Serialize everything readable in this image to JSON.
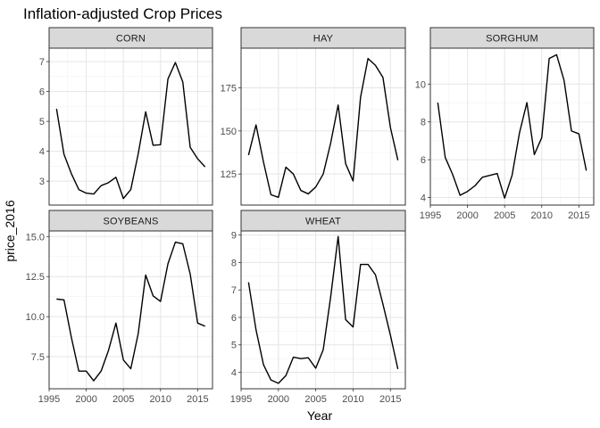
{
  "chart_data": {
    "type": "line",
    "title": "Inflation-adjusted Crop Prices",
    "xlabel": "Year",
    "ylabel": "price_2016",
    "colors": {
      "line": "#000000",
      "panel_background": "#ffffff",
      "strip_fill": "#d9d9d9",
      "strip_border": "#333333",
      "grid_major": "#e5e5e5",
      "grid_minor": "#f2f2f2"
    },
    "layout": "facet-wrap",
    "x": [
      1996,
      1997,
      1998,
      1999,
      2000,
      2001,
      2002,
      2003,
      2004,
      2005,
      2006,
      2007,
      2008,
      2009,
      2010,
      2011,
      2012,
      2013,
      2014,
      2015,
      2016
    ],
    "xlim": [
      1995,
      2017
    ],
    "panels": [
      {
        "name": "CORN",
        "ylim": [
          2.2,
          7.45
        ],
        "yticks": [
          3,
          4,
          5,
          6,
          7
        ],
        "ytick_labels": [
          "3",
          "4",
          "5",
          "6",
          "7"
        ],
        "values": [
          5.42,
          3.9,
          3.25,
          2.72,
          2.6,
          2.57,
          2.85,
          2.95,
          3.13,
          2.42,
          2.72,
          3.92,
          5.32,
          4.2,
          4.22,
          6.42,
          6.97,
          6.32,
          4.13,
          3.75,
          3.48
        ]
      },
      {
        "name": "HAY",
        "ylim": [
          107,
          198
        ],
        "yticks": [
          125,
          150,
          175
        ],
        "ytick_labels": [
          "125",
          "150",
          "175"
        ],
        "values": [
          136,
          153.5,
          132,
          113,
          111.5,
          129,
          125,
          115.5,
          113.5,
          117.5,
          125,
          143,
          165,
          131,
          121,
          169.5,
          192,
          188,
          181,
          152,
          133
        ]
      },
      {
        "name": "SORGHUM",
        "ylim": [
          3.6,
          11.9
        ],
        "yticks": [
          4,
          6,
          8,
          10
        ],
        "ytick_labels": [
          "4",
          "6",
          "8",
          "10"
        ],
        "values": [
          9.02,
          6.12,
          5.22,
          4.12,
          4.32,
          4.62,
          5.07,
          5.17,
          5.27,
          3.97,
          5.17,
          7.42,
          9.02,
          6.27,
          7.17,
          11.35,
          11.55,
          10.2,
          7.52,
          7.37,
          5.42
        ]
      },
      {
        "name": "SOYBEANS",
        "ylim": [
          5.5,
          15.35
        ],
        "yticks": [
          7.5,
          10,
          12.5,
          15
        ],
        "ytick_labels": [
          "7.5",
          "10.0",
          "12.5",
          "15.0"
        ],
        "values": [
          11.1,
          11.05,
          8.7,
          6.6,
          6.6,
          6.0,
          6.6,
          7.9,
          9.6,
          7.3,
          6.75,
          8.95,
          12.6,
          11.3,
          10.95,
          13.3,
          14.65,
          14.55,
          12.65,
          9.6,
          9.4
        ]
      },
      {
        "name": "WHEAT",
        "ylim": [
          3.4,
          9.15
        ],
        "yticks": [
          4,
          5,
          6,
          7,
          8,
          9
        ],
        "ytick_labels": [
          "4",
          "5",
          "6",
          "7",
          "8",
          "9"
        ],
        "values": [
          7.28,
          5.55,
          4.28,
          3.72,
          3.6,
          3.88,
          4.55,
          4.5,
          4.53,
          4.15,
          4.82,
          6.75,
          8.95,
          5.92,
          5.65,
          7.93,
          7.93,
          7.55,
          6.48,
          5.35,
          4.12
        ]
      }
    ],
    "xticks": [
      1995,
      2000,
      2005,
      2010,
      2015
    ],
    "xtick_labels": [
      "1995",
      "2000",
      "2005",
      "2010",
      "2015"
    ],
    "grid": true,
    "legend": "none"
  }
}
